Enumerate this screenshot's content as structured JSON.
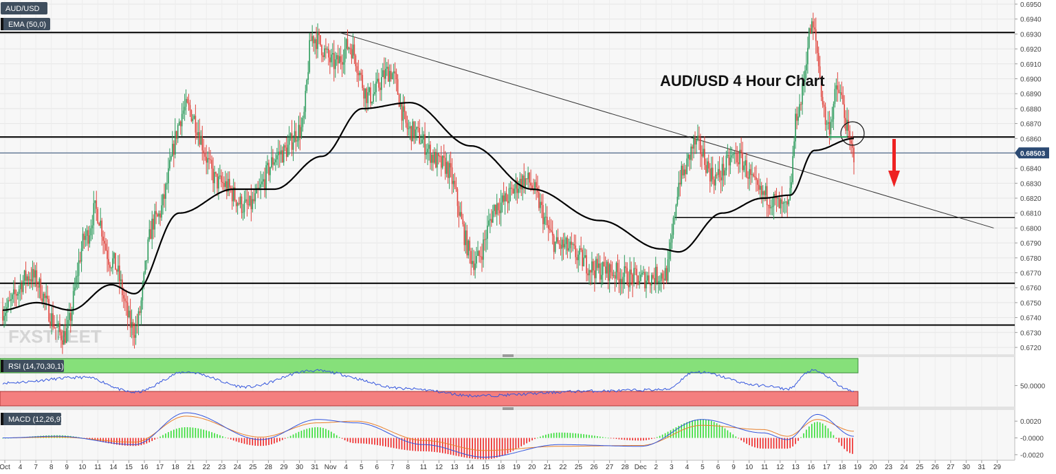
{
  "chart_data": {
    "type": "candlestick",
    "symbol": "AUD/USD",
    "title": "AUD/USD 4 Hour Chart",
    "watermark": "FXSTREET",
    "price_axis": {
      "ylim": [
        0.6715,
        0.6952
      ],
      "ticks": [
        "0.6950",
        "0.6940",
        "0.6930",
        "0.6920",
        "0.6910",
        "0.6900",
        "0.6890",
        "0.6880",
        "0.6870",
        "0.6860",
        "0.6850",
        "0.6840",
        "0.6830",
        "0.6820",
        "0.6810",
        "0.6800",
        "0.6790",
        "0.6780",
        "0.6770",
        "0.6760",
        "0.6750",
        "0.6740",
        "0.6730",
        "0.6720"
      ],
      "last_price": "0.68503",
      "last_price_value": 0.68503
    },
    "x_axis": {
      "labels": [
        "Oct",
        "4",
        "7",
        "8",
        "9",
        "10",
        "11",
        "14",
        "15",
        "16",
        "17",
        "18",
        "21",
        "22",
        "23",
        "24",
        "25",
        "28",
        "29",
        "30",
        "31",
        "Nov",
        "4",
        "5",
        "6",
        "7",
        "8",
        "11",
        "12",
        "13",
        "14",
        "15",
        "18",
        "19",
        "20",
        "21",
        "22",
        "25",
        "26",
        "27",
        "28",
        "Dec",
        "2",
        "3",
        "4",
        "5",
        "6",
        "9",
        "10",
        "11",
        "12",
        "13",
        "16",
        "17",
        "18",
        "19",
        "20",
        "23",
        "24",
        "25",
        "26",
        "27",
        "30",
        "31",
        "29"
      ]
    },
    "indicators": {
      "ema": {
        "label": "EMA (50,0)"
      },
      "rsi": {
        "label": "RSI (14,70,30,1)",
        "ticks": [
          "50.0000"
        ]
      },
      "macd": {
        "label": "MACD (12,26,9)",
        "ticks": [
          "0.0020",
          "-0.0000",
          "-0.0020"
        ]
      }
    },
    "levels": [
      {
        "name": "resistance-top",
        "value": 0.6931
      },
      {
        "name": "resistance-mid",
        "value": 0.6861
      },
      {
        "name": "support-upper",
        "value": 0.6807
      },
      {
        "name": "support-lower",
        "value": 0.6763
      },
      {
        "name": "support-bottom",
        "value": 0.6735
      }
    ],
    "trendline": {
      "from": {
        "bar": 248,
        "price": 0.6931
      },
      "to": {
        "bar": 730,
        "price": 0.68
      }
    },
    "key_points": [
      {
        "bar": 0,
        "price": 0.6745
      },
      {
        "bar": 20,
        "price": 0.6768
      },
      {
        "bar": 45,
        "price": 0.6728
      },
      {
        "bar": 62,
        "price": 0.6795
      },
      {
        "bar": 68,
        "price": 0.6812
      },
      {
        "bar": 80,
        "price": 0.6778
      },
      {
        "bar": 97,
        "price": 0.6732
      },
      {
        "bar": 112,
        "price": 0.6805
      },
      {
        "bar": 135,
        "price": 0.688
      },
      {
        "bar": 160,
        "price": 0.683
      },
      {
        "bar": 180,
        "price": 0.6814
      },
      {
        "bar": 205,
        "price": 0.685
      },
      {
        "bar": 220,
        "price": 0.6866
      },
      {
        "bar": 228,
        "price": 0.6928
      },
      {
        "bar": 245,
        "price": 0.691
      },
      {
        "bar": 255,
        "price": 0.6922
      },
      {
        "bar": 270,
        "price": 0.6888
      },
      {
        "bar": 285,
        "price": 0.6905
      },
      {
        "bar": 300,
        "price": 0.6865
      },
      {
        "bar": 325,
        "price": 0.6842
      },
      {
        "bar": 348,
        "price": 0.6778
      },
      {
        "bar": 365,
        "price": 0.6816
      },
      {
        "bar": 385,
        "price": 0.6832
      },
      {
        "bar": 410,
        "price": 0.6788
      },
      {
        "bar": 440,
        "price": 0.6772
      },
      {
        "bar": 470,
        "price": 0.6766
      },
      {
        "bar": 488,
        "price": 0.6769
      },
      {
        "bar": 500,
        "price": 0.6835
      },
      {
        "bar": 510,
        "price": 0.6856
      },
      {
        "bar": 525,
        "price": 0.6834
      },
      {
        "bar": 540,
        "price": 0.6848
      },
      {
        "bar": 560,
        "price": 0.6822
      },
      {
        "bar": 578,
        "price": 0.6812
      },
      {
        "bar": 586,
        "price": 0.688
      },
      {
        "bar": 596,
        "price": 0.6934
      },
      {
        "bar": 608,
        "price": 0.6868
      },
      {
        "bar": 615,
        "price": 0.6892
      },
      {
        "bar": 627,
        "price": 0.685
      }
    ],
    "ema_points": [
      {
        "bar": 0,
        "price": 0.6745
      },
      {
        "bar": 25,
        "price": 0.675
      },
      {
        "bar": 50,
        "price": 0.6745
      },
      {
        "bar": 80,
        "price": 0.6762
      },
      {
        "bar": 97,
        "price": 0.6756
      },
      {
        "bar": 130,
        "price": 0.681
      },
      {
        "bar": 170,
        "price": 0.6826
      },
      {
        "bar": 200,
        "price": 0.6826
      },
      {
        "bar": 235,
        "price": 0.6848
      },
      {
        "bar": 265,
        "price": 0.688
      },
      {
        "bar": 300,
        "price": 0.6884
      },
      {
        "bar": 345,
        "price": 0.6855
      },
      {
        "bar": 390,
        "price": 0.6826
      },
      {
        "bar": 440,
        "price": 0.6805
      },
      {
        "bar": 485,
        "price": 0.6786
      },
      {
        "bar": 498,
        "price": 0.6784
      },
      {
        "bar": 530,
        "price": 0.681
      },
      {
        "bar": 560,
        "price": 0.682
      },
      {
        "bar": 580,
        "price": 0.6822
      },
      {
        "bar": 598,
        "price": 0.6852
      },
      {
        "bar": 627,
        "price": 0.686
      }
    ],
    "rsi_points": [
      {
        "bar": 0,
        "value": 54
      },
      {
        "bar": 60,
        "value": 62
      },
      {
        "bar": 97,
        "value": 40
      },
      {
        "bar": 135,
        "value": 70
      },
      {
        "bar": 180,
        "value": 48
      },
      {
        "bar": 228,
        "value": 72
      },
      {
        "bar": 300,
        "value": 45
      },
      {
        "bar": 348,
        "value": 35
      },
      {
        "bar": 440,
        "value": 42
      },
      {
        "bar": 488,
        "value": 44
      },
      {
        "bar": 510,
        "value": 70
      },
      {
        "bar": 560,
        "value": 50
      },
      {
        "bar": 578,
        "value": 45
      },
      {
        "bar": 596,
        "value": 72
      },
      {
        "bar": 627,
        "value": 42
      }
    ],
    "macd_points": [
      {
        "bar": 0,
        "macd": 0.0,
        "signal": 0.0
      },
      {
        "bar": 40,
        "macd": 0.0002,
        "signal": 0.0001
      },
      {
        "bar": 97,
        "macd": -0.0008,
        "signal": -0.0005
      },
      {
        "bar": 135,
        "macd": 0.003,
        "signal": 0.0026
      },
      {
        "bar": 190,
        "macd": -0.0002,
        "signal": 0.0001
      },
      {
        "bar": 232,
        "macd": 0.0022,
        "signal": 0.0018
      },
      {
        "bar": 260,
        "macd": 0.0018,
        "signal": 0.002
      },
      {
        "bar": 310,
        "macd": -0.0008,
        "signal": -0.0003
      },
      {
        "bar": 355,
        "macd": -0.0023,
        "signal": -0.0015
      },
      {
        "bar": 410,
        "macd": -0.0008,
        "signal": -0.001
      },
      {
        "bar": 470,
        "macd": -0.001,
        "signal": -0.0009
      },
      {
        "bar": 515,
        "macd": 0.0022,
        "signal": 0.0015
      },
      {
        "bar": 560,
        "macd": 0.0006,
        "signal": 0.001
      },
      {
        "bar": 578,
        "macd": -0.0002,
        "signal": 0.0002
      },
      {
        "bar": 600,
        "macd": 0.0028,
        "signal": 0.0022
      },
      {
        "bar": 627,
        "macd": 0.0002,
        "signal": 0.0008
      }
    ],
    "colors": {
      "bull": "#2a9a5a",
      "bear": "#e0413a",
      "ema": "#000000",
      "trendline": "#333333",
      "rsi_line": "#3355dd",
      "rsi_overbought": "#86e07a",
      "rsi_oversold": "#f47f7f",
      "macd_line": "#3355dd",
      "signal_line": "#e8802a",
      "hist_pos": "#33dd33",
      "hist_neg": "#ee2222",
      "arrow": "#ee2222",
      "price_tag": "#2c4a73"
    }
  }
}
